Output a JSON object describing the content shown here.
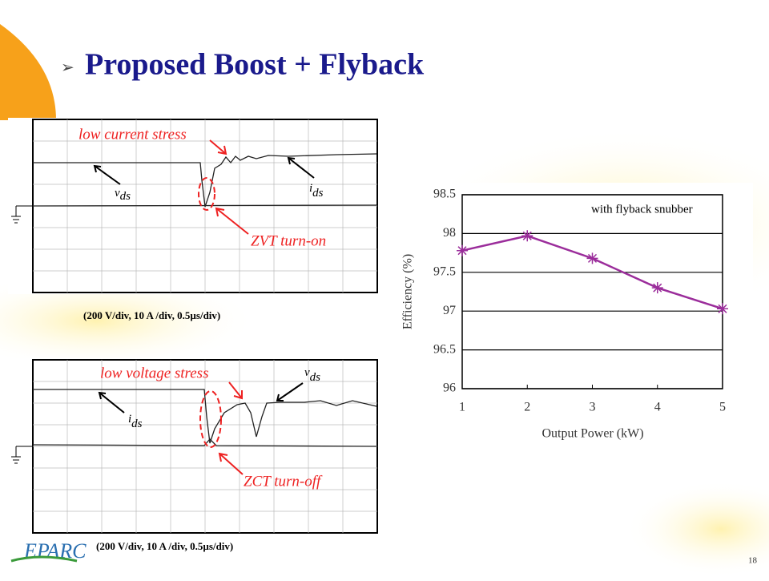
{
  "slide": {
    "title": "Proposed Boost + Flyback",
    "page_number": "18",
    "logo": "EPARC",
    "scope_top": {
      "annotation_stress": "low current stress",
      "annotation_switch": "ZVT turn-on",
      "vds": {
        "main": "v",
        "sub": "ds"
      },
      "ids": {
        "main": "i",
        "sub": "ds"
      },
      "caption": "(200 V/div, 10 A /div, 0.5µs/div)"
    },
    "scope_bottom": {
      "annotation_stress": "low voltage stress",
      "annotation_switch": "ZCT turn-off",
      "vds": {
        "main": "v",
        "sub": "ds"
      },
      "ids": {
        "main": "i",
        "sub": "ds"
      },
      "caption": "(200 V/div, 10 A /div, 0.5µs/div)"
    }
  },
  "chart_data": {
    "type": "line",
    "annotation": "with flyback snubber",
    "x_label": "Output Power (kW)",
    "y_label": "Efficiency (%)",
    "x": [
      1,
      2,
      3,
      4,
      5
    ],
    "values": [
      97.78,
      97.97,
      97.68,
      97.3,
      97.03
    ],
    "color": "#9b2d9b",
    "xlim": [
      1,
      5
    ],
    "xticks": [
      1,
      2,
      3,
      4,
      5
    ],
    "ylim": [
      96,
      98.5
    ],
    "yticks": [
      96,
      96.5,
      97,
      97.5,
      98,
      98.5
    ],
    "grid": true
  }
}
